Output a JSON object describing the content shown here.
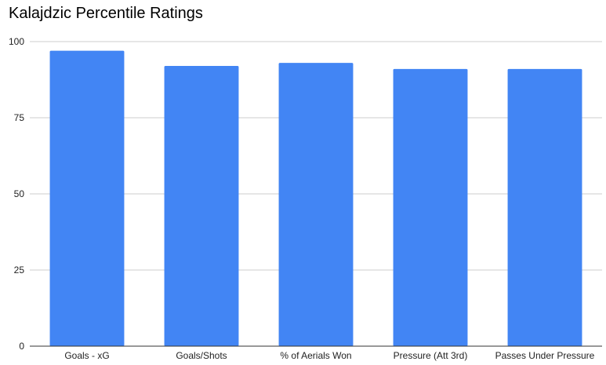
{
  "chart_data": {
    "type": "bar",
    "title": "Kalajdzic Percentile Ratings",
    "categories": [
      "Goals - xG",
      "Goals/Shots",
      "% of Aerials Won",
      "Pressure (Att 3rd)",
      "Passes Under Pressure"
    ],
    "series": [
      {
        "values": [
          97,
          92,
          93,
          91,
          91
        ]
      }
    ],
    "xlabel": "",
    "ylabel": "",
    "ylim": [
      0,
      100
    ],
    "yticks": [
      0,
      25,
      50,
      75,
      100
    ],
    "grid": true,
    "legend": "none",
    "colors": {
      "bar": "#4285f4",
      "grid": "#cccccc",
      "axis": "#333333",
      "text": "#222222"
    }
  }
}
